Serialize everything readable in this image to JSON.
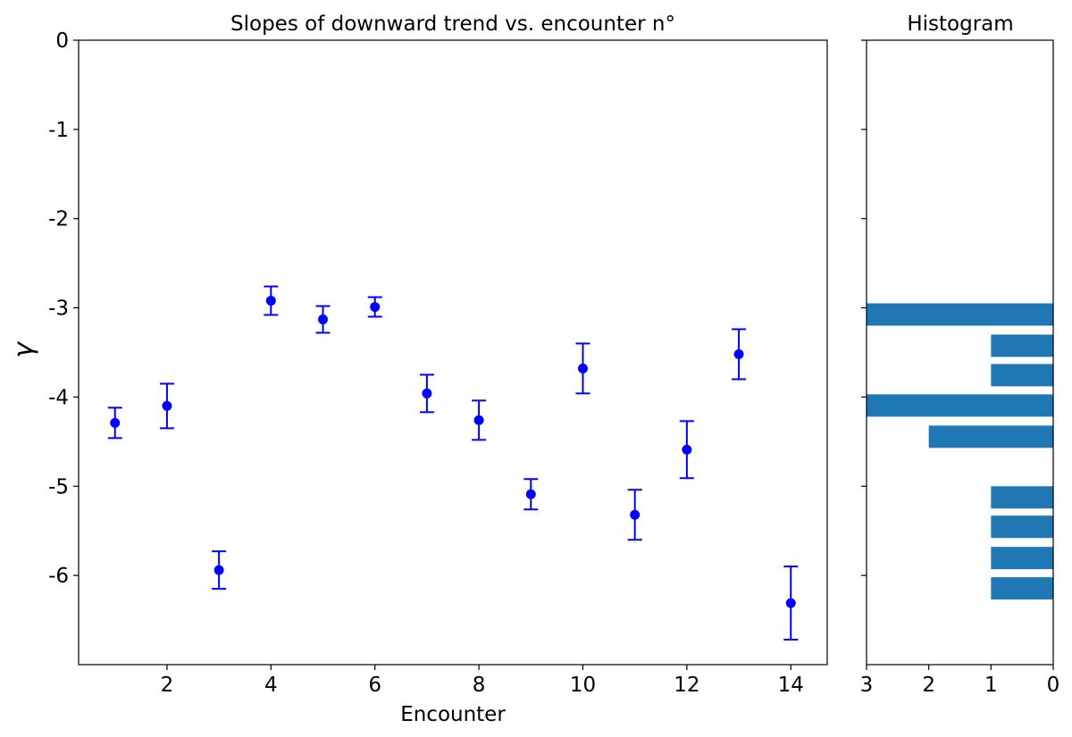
{
  "chart_data": [
    {
      "type": "scatter",
      "title": "Slopes of downward trend vs. encounter n°",
      "xlabel": "Encounter",
      "ylabel": "γ",
      "xlim": [
        0.3,
        14.7
      ],
      "ylim": [
        -7.0,
        0.0
      ],
      "x_ticks": [
        2,
        4,
        6,
        8,
        10,
        12,
        14
      ],
      "y_ticks": [
        0,
        -1,
        -2,
        -3,
        -4,
        -5,
        -6
      ],
      "grid": false,
      "color": "#0000ff",
      "series": [
        {
          "x": [
            1,
            2,
            3,
            4,
            5,
            6,
            7,
            8,
            9,
            10,
            11,
            12,
            13,
            14
          ],
          "y": [
            -4.29,
            -4.1,
            -5.94,
            -2.92,
            -3.13,
            -2.99,
            -3.96,
            -4.26,
            -5.09,
            -3.68,
            -5.32,
            -4.59,
            -3.52,
            -6.31
          ],
          "error": [
            0.17,
            0.25,
            0.21,
            0.16,
            0.15,
            0.11,
            0.21,
            0.22,
            0.17,
            0.28,
            0.28,
            0.32,
            0.28,
            0.41
          ]
        }
      ]
    },
    {
      "type": "bar",
      "orientation": "horizontal",
      "title": "Histogram",
      "xlim": [
        3.0,
        0.0
      ],
      "x_ticks": [
        3,
        2,
        1,
        0
      ],
      "ylim": [
        -7.0,
        0.0
      ],
      "color": "#1f77b4",
      "bars": [
        {
          "y_from": -3.2,
          "y_to": -2.95,
          "count": 3
        },
        {
          "y_from": -3.55,
          "y_to": -3.3,
          "count": 1
        },
        {
          "y_from": -3.88,
          "y_to": -3.63,
          "count": 1
        },
        {
          "y_from": -4.22,
          "y_to": -3.97,
          "count": 3
        },
        {
          "y_from": -4.57,
          "y_to": -4.32,
          "count": 2
        },
        {
          "y_from": -5.25,
          "y_to": -5.0,
          "count": 1
        },
        {
          "y_from": -5.58,
          "y_to": -5.33,
          "count": 1
        },
        {
          "y_from": -5.93,
          "y_to": -5.68,
          "count": 1
        },
        {
          "y_from": -6.27,
          "y_to": -6.02,
          "count": 1
        }
      ]
    }
  ]
}
